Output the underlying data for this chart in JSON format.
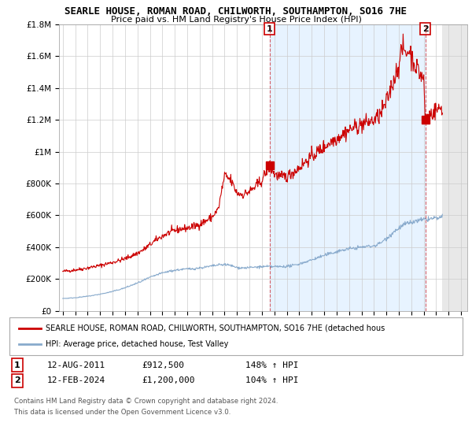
{
  "title": "SEARLE HOUSE, ROMAN ROAD, CHILWORTH, SOUTHAMPTON, SO16 7HE",
  "subtitle": "Price paid vs. HM Land Registry's House Price Index (HPI)",
  "legend_label_red": "SEARLE HOUSE, ROMAN ROAD, CHILWORTH, SOUTHAMPTON, SO16 7HE (detached hous",
  "legend_label_blue": "HPI: Average price, detached house, Test Valley",
  "annotation1": {
    "label": "1",
    "date": "12-AUG-2011",
    "price": "£912,500",
    "hpi": "148% ↑ HPI",
    "x_year": 2011.62,
    "y_value": 912500
  },
  "annotation2": {
    "label": "2",
    "date": "12-FEB-2024",
    "price": "£1,200,000",
    "hpi": "104% ↑ HPI",
    "x_year": 2024.12,
    "y_value": 1200000
  },
  "footer1": "Contains HM Land Registry data © Crown copyright and database right 2024.",
  "footer2": "This data is licensed under the Open Government Licence v3.0.",
  "ylim": [
    0,
    1800000
  ],
  "xlim_start": 1994.7,
  "xlim_end": 2027.5,
  "yticks": [
    0,
    200000,
    400000,
    600000,
    800000,
    1000000,
    1200000,
    1400000,
    1600000,
    1800000
  ],
  "ytick_labels": [
    "£0",
    "£200K",
    "£400K",
    "£600K",
    "£800K",
    "£1M",
    "£1.2M",
    "£1.4M",
    "£1.6M",
    "£1.8M"
  ],
  "xticks": [
    1995,
    1996,
    1997,
    1998,
    1999,
    2000,
    2001,
    2002,
    2003,
    2004,
    2005,
    2006,
    2007,
    2008,
    2009,
    2010,
    2011,
    2012,
    2013,
    2014,
    2015,
    2016,
    2017,
    2018,
    2019,
    2020,
    2021,
    2022,
    2023,
    2024,
    2025,
    2026,
    2027
  ],
  "red_color": "#cc0000",
  "blue_color": "#88aacc",
  "blue_shade_color": "#ddeeff",
  "grid_color": "#cccccc",
  "background_color": "#ffffff",
  "hatch_start": 2025.5
}
